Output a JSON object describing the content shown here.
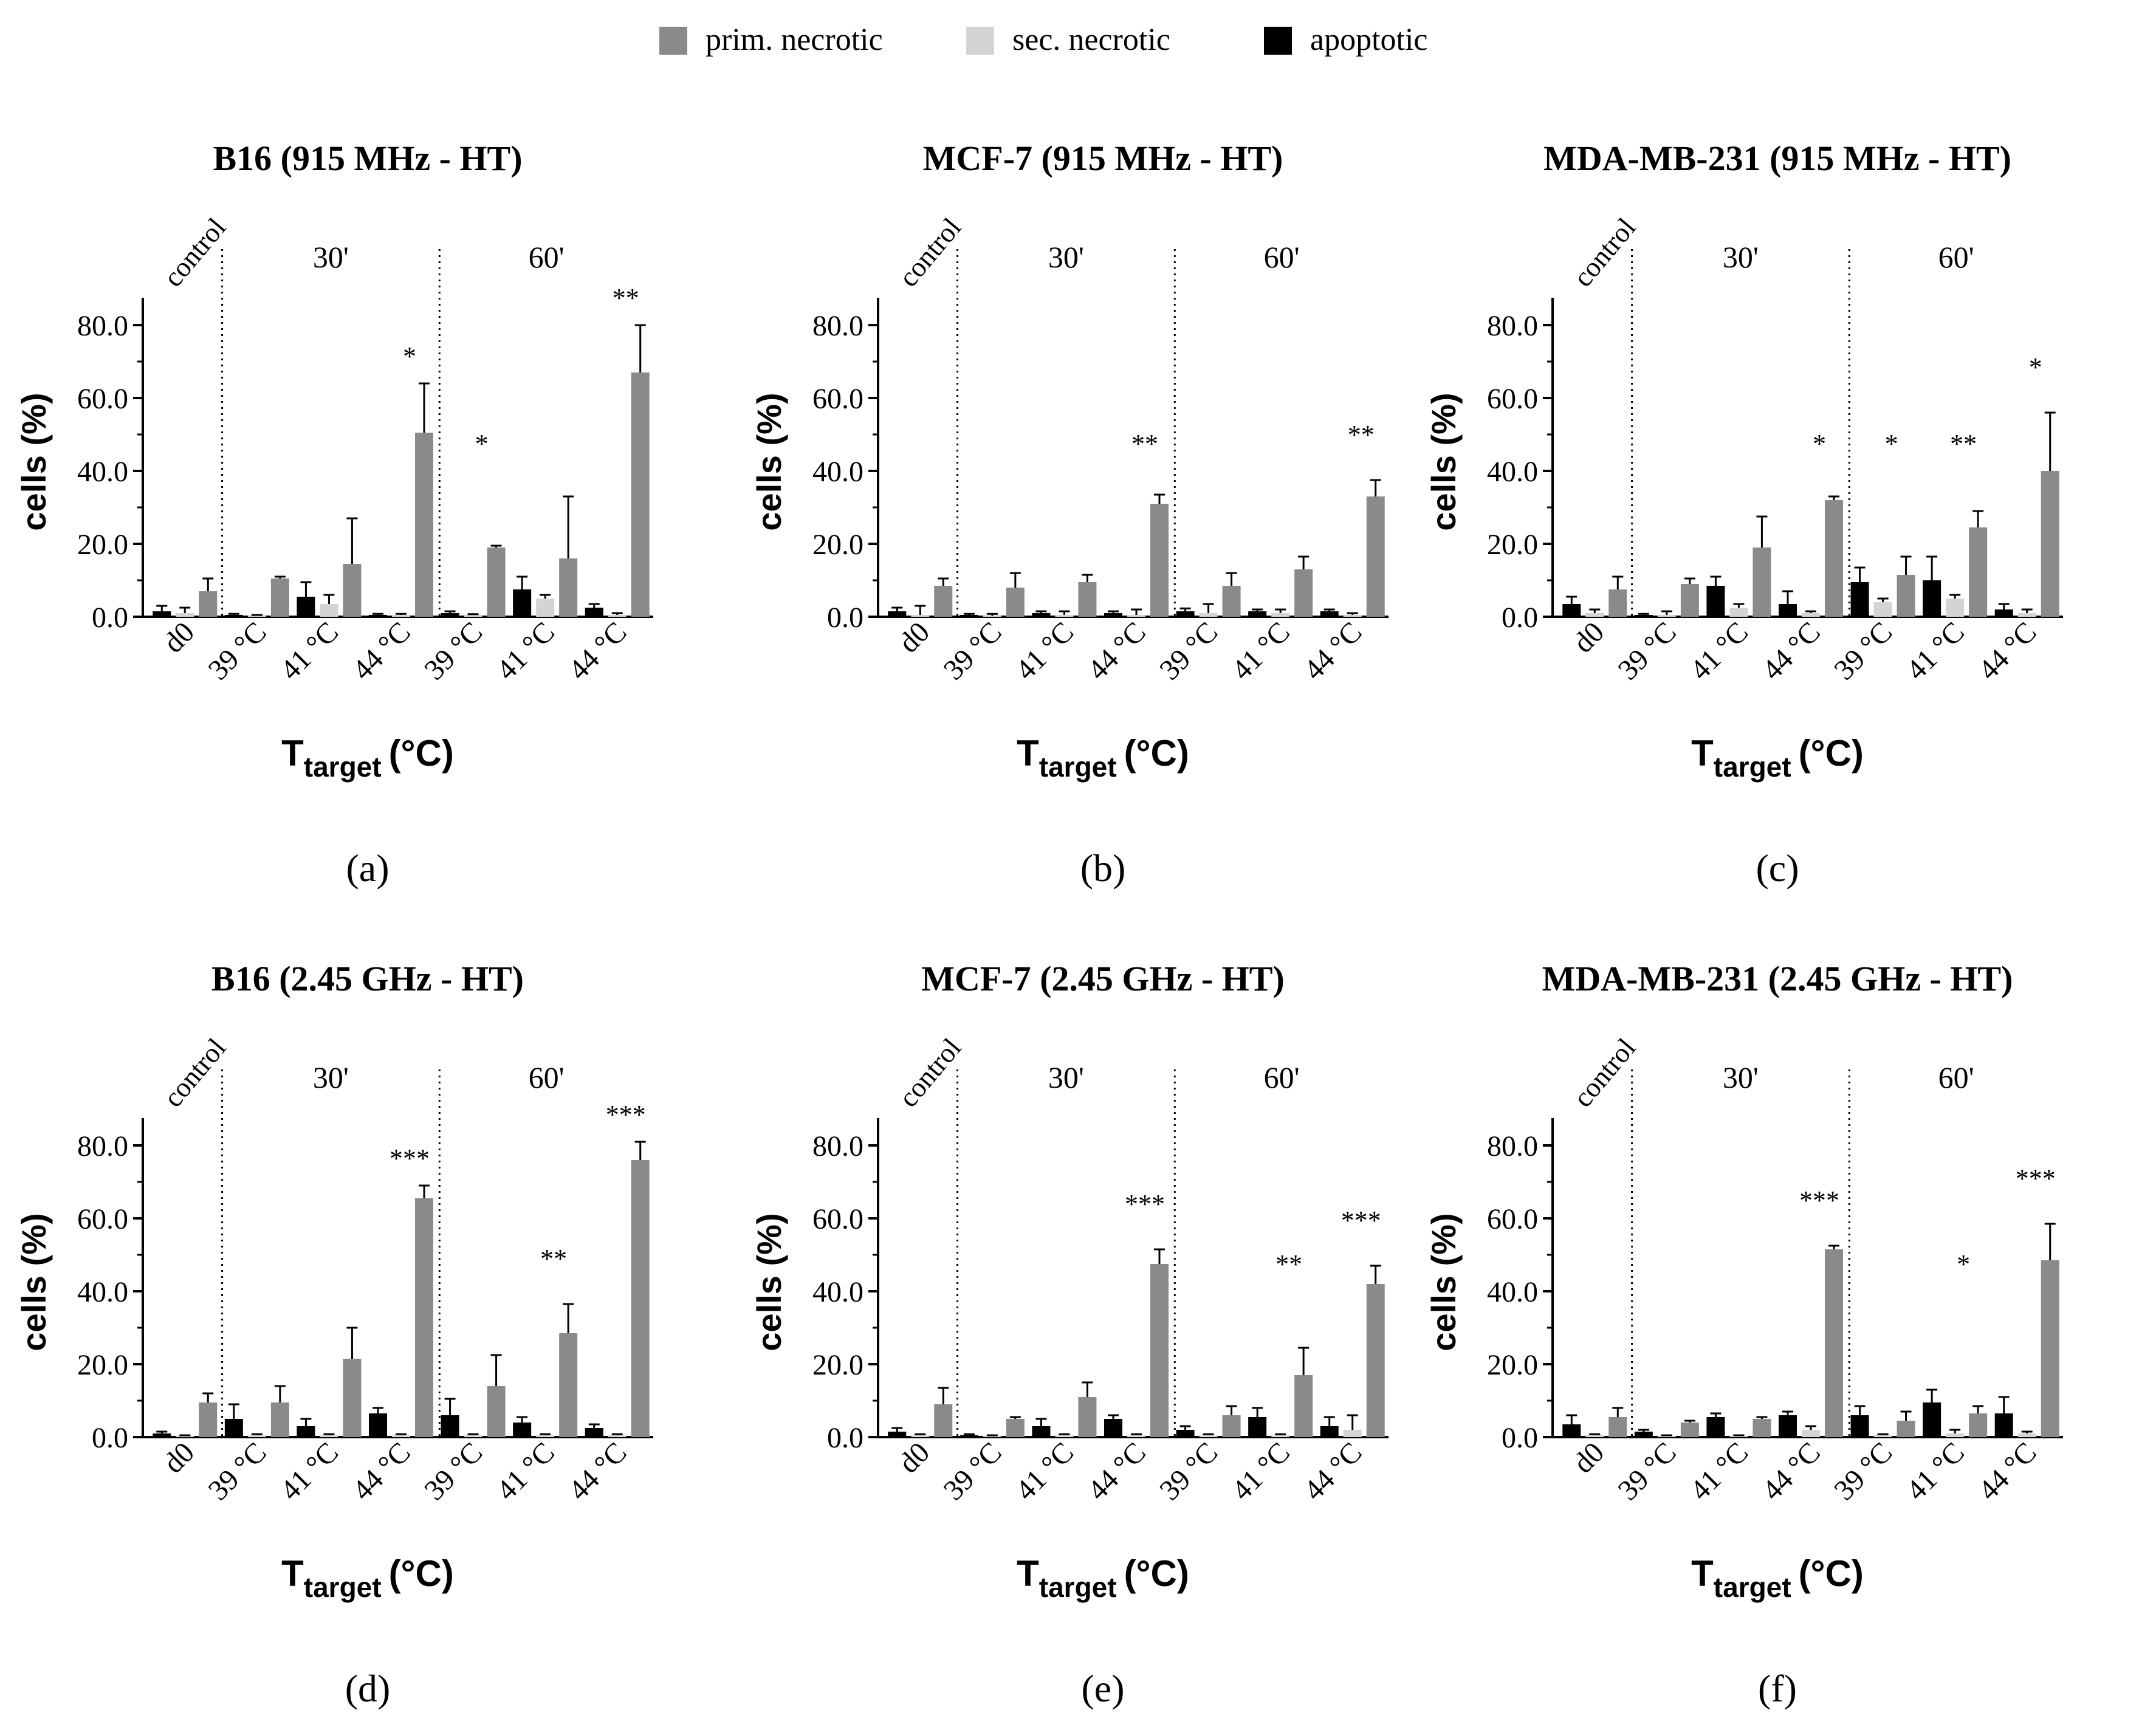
{
  "colors": {
    "prim": "#8a8a8a",
    "sec": "#d4d4d4",
    "apop": "#000000"
  },
  "legend": [
    {
      "key": "prim",
      "label": "prim. necrotic"
    },
    {
      "key": "sec",
      "label": "sec. necrotic"
    },
    {
      "key": "apop",
      "label": "apoptotic"
    }
  ],
  "chart_data": [
    {
      "type": "bar",
      "panel_label": "(a)",
      "title": "B16 (915 MHz - HT)",
      "ylabel": "cells (%)",
      "xlabel_main": "T",
      "xlabel_sub": "target",
      "xlabel_unit": "(°C)",
      "ylim": [
        0,
        85
      ],
      "yticks": [
        "0.0",
        "20.0",
        "40.0",
        "60.0",
        "80.0"
      ],
      "group_labels": {
        "control": "control",
        "g30": "30'",
        "g60": "60'"
      },
      "categories": [
        "d0",
        "39 °C",
        "41 °C",
        "44 °C",
        "39 °C",
        "41 °C",
        "44 °C"
      ],
      "series": [
        {
          "name": "apoptotic",
          "key": "apop",
          "values": [
            1.5,
            0.5,
            5.5,
            0.5,
            1.0,
            7.5,
            2.5
          ],
          "err": [
            1.5,
            0.3,
            4.0,
            0.3,
            0.5,
            3.5,
            1.0
          ]
        },
        {
          "name": "sec. necrotic",
          "key": "sec",
          "values": [
            1.0,
            0.3,
            3.5,
            0.5,
            0.5,
            5.0,
            0.5
          ],
          "err": [
            1.5,
            0.2,
            2.5,
            0.3,
            0.2,
            1.0,
            0.5
          ]
        },
        {
          "name": "prim. necrotic",
          "key": "prim",
          "values": [
            7.0,
            10.5,
            14.5,
            50.5,
            19.0,
            16.0,
            67.0
          ],
          "err": [
            3.5,
            0.5,
            12.5,
            13.5,
            0.5,
            17.0,
            13.0
          ]
        }
      ],
      "significance": [
        "",
        "",
        "",
        "*",
        "*",
        "",
        "**"
      ]
    },
    {
      "type": "bar",
      "panel_label": "(b)",
      "title": "MCF-7 (915  MHz - HT)",
      "ylabel": "cells (%)",
      "xlabel_main": "T",
      "xlabel_sub": "target",
      "xlabel_unit": "(°C)",
      "ylim": [
        0,
        85
      ],
      "yticks": [
        "0.0",
        "20.0",
        "40.0",
        "60.0",
        "80.0"
      ],
      "group_labels": {
        "control": "control",
        "g30": "30'",
        "g60": "60'"
      },
      "categories": [
        "d0",
        "39 °C",
        "41 °C",
        "44 °C",
        "39 °C",
        "41 °C",
        "44 °C"
      ],
      "series": [
        {
          "name": "apoptotic",
          "key": "apop",
          "values": [
            1.5,
            0.5,
            1.0,
            1.0,
            1.5,
            1.5,
            1.5
          ],
          "err": [
            1.0,
            0.3,
            0.5,
            0.5,
            0.8,
            0.5,
            0.5
          ]
        },
        {
          "name": "sec. necrotic",
          "key": "sec",
          "values": [
            0.5,
            0.3,
            0.5,
            0.5,
            1.0,
            1.0,
            0.5
          ],
          "err": [
            2.5,
            0.5,
            1.0,
            1.5,
            2.5,
            1.0,
            0.5
          ]
        },
        {
          "name": "prim. necrotic",
          "key": "prim",
          "values": [
            8.5,
            8.0,
            9.5,
            31.0,
            8.5,
            13.0,
            33.0
          ],
          "err": [
            2.0,
            4.0,
            2.0,
            2.5,
            3.5,
            3.5,
            4.5
          ]
        }
      ],
      "significance": [
        "",
        "",
        "",
        "**",
        "",
        "",
        "**"
      ]
    },
    {
      "type": "bar",
      "panel_label": "(c)",
      "title": "MDA-MB-231 (915 MHz - HT)",
      "ylabel": "cells (%)",
      "xlabel_main": "T",
      "xlabel_sub": "target",
      "xlabel_unit": "(°C)",
      "ylim": [
        0,
        85
      ],
      "yticks": [
        "0.0",
        "20.0",
        "40.0",
        "60.0",
        "80.0"
      ],
      "group_labels": {
        "control": "control",
        "g30": "30'",
        "g60": "60'"
      },
      "categories": [
        "d0",
        "39 °C",
        "41 °C",
        "44 °C",
        "39 °C",
        "41 °C",
        "44 °C"
      ],
      "series": [
        {
          "name": "apoptotic",
          "key": "apop",
          "values": [
            3.5,
            0.5,
            8.5,
            3.5,
            9.5,
            10.0,
            2.0
          ],
          "err": [
            2.0,
            0.3,
            2.5,
            3.5,
            4.0,
            6.5,
            1.5
          ]
        },
        {
          "name": "sec. necrotic",
          "key": "sec",
          "values": [
            1.0,
            0.5,
            2.5,
            1.0,
            4.0,
            5.0,
            1.0
          ],
          "err": [
            1.0,
            1.0,
            1.0,
            0.5,
            1.0,
            1.0,
            1.0
          ]
        },
        {
          "name": "prim. necrotic",
          "key": "prim",
          "values": [
            7.5,
            9.0,
            19.0,
            32.0,
            11.5,
            24.5,
            40.0
          ],
          "err": [
            3.5,
            1.5,
            8.5,
            1.0,
            5.0,
            4.5,
            16.0
          ]
        }
      ],
      "significance": [
        "",
        "",
        "",
        "*",
        "*",
        "**",
        "*"
      ]
    },
    {
      "type": "bar",
      "panel_label": "(d)",
      "title": "B16 (2.45 GHz - HT)",
      "ylabel": "cells (%)",
      "xlabel_main": "T",
      "xlabel_sub": "target",
      "xlabel_unit": "(°C)",
      "ylim": [
        0,
        85
      ],
      "yticks": [
        "0.0",
        "20.0",
        "40.0",
        "60.0",
        "80.0"
      ],
      "group_labels": {
        "control": "control",
        "g30": "30'",
        "g60": "60'"
      },
      "categories": [
        "d0",
        "39 °C",
        "41 °C",
        "44 °C",
        "39 °C",
        "41 °C",
        "44 °C"
      ],
      "series": [
        {
          "name": "apoptotic",
          "key": "apop",
          "values": [
            1.0,
            5.0,
            3.0,
            6.5,
            6.0,
            4.0,
            2.5
          ],
          "err": [
            0.5,
            4.0,
            2.0,
            1.5,
            4.5,
            1.5,
            1.0
          ]
        },
        {
          "name": "sec. necrotic",
          "key": "sec",
          "values": [
            0.3,
            0.5,
            0.5,
            0.5,
            0.5,
            0.5,
            0.5
          ],
          "err": [
            0.2,
            0.3,
            0.3,
            0.3,
            0.3,
            0.3,
            0.3
          ]
        },
        {
          "name": "prim. necrotic",
          "key": "prim",
          "values": [
            9.5,
            9.5,
            21.5,
            65.5,
            14.0,
            28.5,
            76.0
          ],
          "err": [
            2.5,
            4.5,
            8.5,
            3.5,
            8.5,
            8.0,
            5.0
          ]
        }
      ],
      "significance": [
        "",
        "",
        "",
        "***",
        "",
        "**",
        "***"
      ]
    },
    {
      "type": "bar",
      "panel_label": "(e)",
      "title": "MCF-7 (2.45 GHz - HT)",
      "ylabel": "cells (%)",
      "xlabel_main": "T",
      "xlabel_sub": "target",
      "xlabel_unit": "(°C)",
      "ylim": [
        0,
        85
      ],
      "yticks": [
        "0.0",
        "20.0",
        "40.0",
        "60.0",
        "80.0"
      ],
      "group_labels": {
        "control": "control",
        "g30": "30'",
        "g60": "60'"
      },
      "categories": [
        "d0",
        "39 °C",
        "41 °C",
        "44 °C",
        "39 °C",
        "41 °C",
        "44 °C"
      ],
      "series": [
        {
          "name": "apoptotic",
          "key": "apop",
          "values": [
            1.5,
            0.5,
            3.0,
            5.0,
            2.0,
            5.5,
            3.0
          ],
          "err": [
            1.0,
            0.3,
            2.0,
            1.0,
            1.0,
            2.5,
            2.5
          ]
        },
        {
          "name": "sec. necrotic",
          "key": "sec",
          "values": [
            0.5,
            0.3,
            0.5,
            0.5,
            0.5,
            0.5,
            2.0
          ],
          "err": [
            0.3,
            0.2,
            0.3,
            0.3,
            0.3,
            0.3,
            4.0
          ]
        },
        {
          "name": "prim. necrotic",
          "key": "prim",
          "values": [
            9.0,
            5.0,
            11.0,
            47.5,
            6.0,
            17.0,
            42.0
          ],
          "err": [
            4.5,
            0.5,
            4.0,
            4.0,
            2.5,
            7.5,
            5.0
          ]
        }
      ],
      "significance": [
        "",
        "",
        "",
        "***",
        "",
        "**",
        "***"
      ]
    },
    {
      "type": "bar",
      "panel_label": "(f)",
      "title": "MDA-MB-231 (2.45 GHz - HT)",
      "ylabel": "cells (%)",
      "xlabel_main": "T",
      "xlabel_sub": "target",
      "xlabel_unit": "(°C)",
      "ylim": [
        0,
        85
      ],
      "yticks": [
        "0.0",
        "20.0",
        "40.0",
        "60.0",
        "80.0"
      ],
      "group_labels": {
        "control": "control",
        "g30": "30'",
        "g60": "60'"
      },
      "categories": [
        "d0",
        "39 °C",
        "41 °C",
        "44 °C",
        "39 °C",
        "41 °C",
        "44 °C"
      ],
      "series": [
        {
          "name": "apoptotic",
          "key": "apop",
          "values": [
            3.5,
            1.5,
            5.5,
            6.0,
            6.0,
            9.5,
            6.5
          ],
          "err": [
            2.5,
            0.5,
            1.0,
            1.0,
            2.5,
            3.5,
            4.5
          ]
        },
        {
          "name": "sec. necrotic",
          "key": "sec",
          "values": [
            0.5,
            0.3,
            0.3,
            2.0,
            0.5,
            1.0,
            1.0
          ],
          "err": [
            0.3,
            0.2,
            0.2,
            1.0,
            0.3,
            1.0,
            0.5
          ]
        },
        {
          "name": "prim. necrotic",
          "key": "prim",
          "values": [
            5.5,
            4.0,
            5.0,
            51.5,
            4.5,
            6.5,
            48.5
          ],
          "err": [
            2.5,
            0.5,
            0.5,
            1.0,
            2.5,
            2.0,
            10.0
          ]
        }
      ],
      "significance": [
        "",
        "",
        "",
        "***",
        "",
        "*",
        "***"
      ]
    }
  ]
}
